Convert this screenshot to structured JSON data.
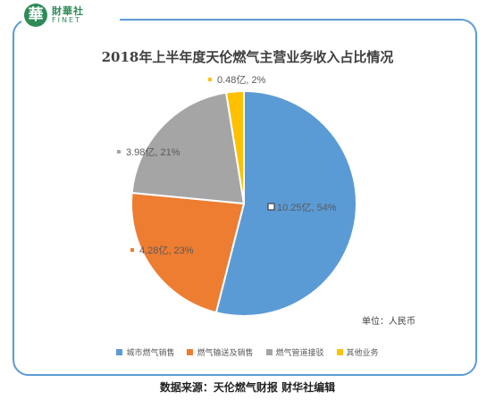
{
  "brand": {
    "mark": "華",
    "name_cn": "財華社",
    "name_en": "FINET"
  },
  "unit_note": "单位：人民币",
  "source": "数据来源：天伦燃气财报    财华社编辑",
  "chart_data": {
    "type": "pie",
    "title": "2018年上半年度天伦燃气主营业务收入占比情况",
    "unit": "亿",
    "start_angle_deg": 0,
    "direction": "clockwise",
    "legend_position": "bottom",
    "slices": [
      {
        "name": "城市燃气销售",
        "value": 10.25,
        "percent": 54,
        "label": "10.25亿, 54%",
        "color": "#5b9bd5"
      },
      {
        "name": "燃气输送及销售",
        "value": 4.28,
        "percent": 23,
        "label": "4.28亿, 23%",
        "color": "#ed7d31"
      },
      {
        "name": "燃气管道接驳",
        "value": 3.98,
        "percent": 21,
        "label": "3.98亿, 21%",
        "color": "#a5a5a5"
      },
      {
        "name": "其他业务",
        "value": 0.48,
        "percent": 2,
        "label": "0.48亿, 2%",
        "color": "#ffc000"
      }
    ]
  }
}
